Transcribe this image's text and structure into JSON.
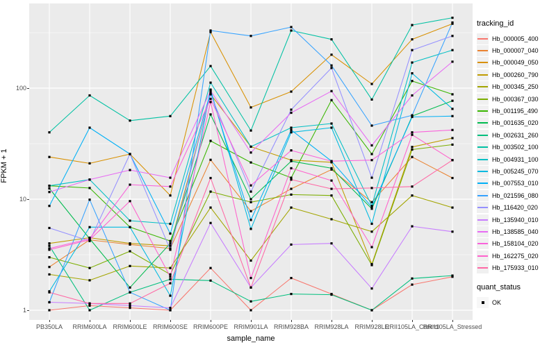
{
  "figure": {
    "background": "#FFFFFF",
    "panel_background": "#EBEBEB",
    "gridline_color": "#FFFFFF",
    "tick_label_color": "#4D4D4D",
    "marker_color": "#000000"
  },
  "chart_data": {
    "type": "line",
    "title": "",
    "xlabel": "sample_name",
    "ylabel": "FPKM + 1",
    "y_scale": "log10",
    "y_ticks": [
      1,
      10,
      100
    ],
    "y_minor_ticks": [
      3.162,
      31.623,
      316.228
    ],
    "ylim": [
      0.82,
      580
    ],
    "grid": true,
    "point_marker": "black-square",
    "legend": {
      "color_title": "tracking_id",
      "shape_title": "quant_status",
      "shape_label": "OK",
      "position": "right"
    },
    "categories": [
      "PB350LA",
      "RRIM600LA",
      "RRIM600LE",
      "RRIM600SE",
      "RRIM600PE",
      "RRIM901LA",
      "RRIM928BA",
      "RRIM928LA",
      "RRIM928LE",
      "RRII105LA_Control",
      "RRII105LA_Stressed"
    ],
    "series": [
      {
        "name": "Hb_000005_400",
        "color": "#F8766D",
        "values": [
          1.0,
          1.1,
          1.05,
          1.0,
          2.4,
          1.0,
          1.95,
          1.4,
          1.0,
          1.7,
          2.0
        ]
      },
      {
        "name": "Hb_000007_040",
        "color": "#EA8331",
        "values": [
          2.45,
          4.3,
          3.9,
          3.6,
          22.6,
          7.8,
          12.4,
          18.5,
          9.4,
          24,
          15.5
        ]
      },
      {
        "name": "Hb_000049_050",
        "color": "#D89000",
        "values": [
          24,
          21,
          25.5,
          10.8,
          320,
          67,
          93,
          200,
          109,
          275,
          380
        ]
      },
      {
        "name": "Hb_000260_790",
        "color": "#C09B00",
        "values": [
          4.0,
          4.5,
          4.0,
          3.8,
          88,
          29.7,
          22.5,
          21.5,
          2.6,
          29.5,
          35.5
        ]
      },
      {
        "name": "Hb_000345_250",
        "color": "#A3A500",
        "values": [
          2.1,
          1.86,
          2.5,
          2.4,
          8.4,
          2.8,
          8.4,
          6.6,
          5.1,
          10.8,
          8.4
        ]
      },
      {
        "name": "Hb_000367_030",
        "color": "#7CAE00",
        "values": [
          3.0,
          2.4,
          3.4,
          2.1,
          11.7,
          9.4,
          11.0,
          10.8,
          2.55,
          28,
          31
        ]
      },
      {
        "name": "Hb_001195_490",
        "color": "#39B600",
        "values": [
          13.2,
          12.6,
          5.6,
          4.2,
          33.5,
          21.4,
          15.6,
          78,
          25.5,
          116,
          88
        ]
      },
      {
        "name": "Hb_001635_020",
        "color": "#00BB4E",
        "values": [
          12.5,
          4.4,
          1.6,
          4.0,
          58,
          10,
          22,
          19,
          8.2,
          56,
          77
        ]
      },
      {
        "name": "Hb_002631_260",
        "color": "#00BF7D",
        "values": [
          3.8,
          1.0,
          1.45,
          1.9,
          1.85,
          1.2,
          1.4,
          1.38,
          1.0,
          1.93,
          2.05
        ]
      },
      {
        "name": "Hb_003502_100",
        "color": "#00C1A3",
        "values": [
          40,
          86,
          51,
          56,
          158,
          41.5,
          330,
          275,
          79,
          370,
          430
        ]
      },
      {
        "name": "Hb_004931_100",
        "color": "#00BFC4",
        "values": [
          13.2,
          15,
          6.4,
          6.0,
          112,
          29.7,
          44,
          48,
          8.7,
          170,
          220
        ]
      },
      {
        "name": "Hb_005245_070",
        "color": "#00BAE0",
        "values": [
          1.48,
          5.6,
          5.6,
          1.35,
          97,
          5.4,
          40,
          44,
          6.0,
          136,
          65
        ]
      },
      {
        "name": "Hb_007553_010",
        "color": "#00B0F6",
        "values": [
          8.7,
          44,
          25.5,
          4.9,
          92,
          6.5,
          42,
          22,
          8.5,
          55,
          56
        ]
      },
      {
        "name": "Hb_021596_080",
        "color": "#35A2FF",
        "values": [
          1.18,
          9.9,
          1.45,
          1.0,
          330,
          295,
          355,
          160,
          46,
          57,
          390
        ]
      },
      {
        "name": "Hb_116420_020",
        "color": "#9590FF",
        "values": [
          5.5,
          4.2,
          25.5,
          3.5,
          88,
          11.7,
          64,
          152,
          15.6,
          220,
          295
        ]
      },
      {
        "name": "Hb_135940_010",
        "color": "#C77CFF",
        "values": [
          1.18,
          1.15,
          1.1,
          1.05,
          6.1,
          1.6,
          3.9,
          4.0,
          1.57,
          5.7,
          5.1
        ]
      },
      {
        "name": "Hb_138585_040",
        "color": "#E76BF3",
        "values": [
          11.6,
          15,
          18.3,
          15.6,
          95,
          26.3,
          60,
          94,
          30.5,
          86,
          173
        ]
      },
      {
        "name": "Hb_158104_020",
        "color": "#FA62DB",
        "values": [
          3.6,
          4.4,
          13.5,
          13,
          80,
          13.3,
          27.5,
          22,
          22.5,
          40,
          42
        ]
      },
      {
        "name": "Hb_162275_020",
        "color": "#FF61CC",
        "values": [
          3.5,
          4.3,
          9.6,
          2.0,
          75,
          1.95,
          19,
          14.7,
          3.7,
          38,
          22.5
        ]
      },
      {
        "name": "Hb_175933_010",
        "color": "#FF67A4",
        "values": [
          1.45,
          1.15,
          1.15,
          1.75,
          15.5,
          1.6,
          15,
          12.4,
          12.6,
          13,
          22.5
        ]
      }
    ]
  }
}
